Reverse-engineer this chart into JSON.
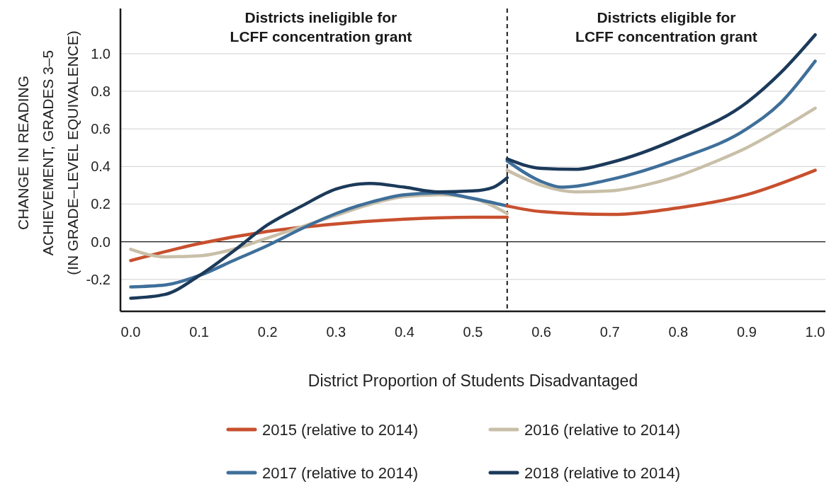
{
  "chart_data": {
    "type": "line",
    "xlabel": "District Proportion of Students Disadvantaged",
    "ylabel": "CHANGE IN READING\nACHIEVEMENT, GRADES 3–5\n(IN GRADE–LEVEL EQUIVALENCE)",
    "annotations": [
      "Districts ineligible for\nLCFF concentration grant",
      "Districts eligible for\nLCFF concentration grant"
    ],
    "xlim": [
      -0.015,
      1.015
    ],
    "ylim": [
      -0.37,
      1.24
    ],
    "xticks": [
      {
        "value": 0,
        "label": "0.0"
      },
      0.1,
      0.2,
      0.3,
      0.4,
      0.5,
      0.6,
      0.7,
      0.8,
      0.9,
      {
        "value": 1,
        "label": "1.0"
      }
    ],
    "yticks": [
      -0.2,
      {
        "value": 0,
        "label": "0.0"
      },
      0.2,
      0.4,
      0.6,
      0.8,
      {
        "value": 1,
        "label": "1.0"
      }
    ],
    "grid": "y",
    "legend": "bottom",
    "line_style": "solid",
    "ref_lines": [
      {
        "axis": "x",
        "value": 0.55,
        "line_style": "dashed",
        "color": "#1a1a1a"
      },
      {
        "axis": "y",
        "value": 0,
        "line_style": "solid",
        "color": "#1a1a1a"
      }
    ],
    "series": [
      {
        "name": "2015 (relative to 2014)",
        "color": "#c8502e",
        "x": [
          0,
          0.1,
          0.2,
          0.3,
          0.4,
          0.5,
          0.55
        ],
        "values": [
          -0.1,
          -0.01,
          0.055,
          0.095,
          0.12,
          0.13,
          0.13
        ]
      },
      {
        "name": "2016 (relative to 2014)",
        "color": "#c9bfa8",
        "x": [
          0,
          0.05,
          0.1,
          0.15,
          0.2,
          0.25,
          0.3,
          0.35,
          0.4,
          0.45,
          0.5,
          0.55
        ],
        "values": [
          -0.04,
          -0.08,
          -0.075,
          -0.04,
          0.02,
          0.08,
          0.14,
          0.2,
          0.24,
          0.25,
          0.23,
          0.15
        ]
      },
      {
        "name": "2017 (relative to 2014)",
        "color": "#3f6f9a",
        "x": [
          0,
          0.05,
          0.1,
          0.15,
          0.2,
          0.25,
          0.3,
          0.35,
          0.4,
          0.45,
          0.5,
          0.55
        ],
        "values": [
          -0.24,
          -0.23,
          -0.18,
          -0.1,
          -0.02,
          0.07,
          0.15,
          0.21,
          0.25,
          0.26,
          0.23,
          0.19
        ]
      },
      {
        "name": "2018 (relative to 2014)",
        "color": "#1c3a5a",
        "x": [
          0,
          0.05,
          0.1,
          0.15,
          0.2,
          0.25,
          0.3,
          0.35,
          0.4,
          0.45,
          0.5,
          0.53,
          0.55
        ],
        "values": [
          -0.3,
          -0.28,
          -0.18,
          -0.05,
          0.09,
          0.19,
          0.28,
          0.31,
          0.29,
          0.265,
          0.27,
          0.29,
          0.34
        ]
      },
      {
        "color": "#c8502e",
        "x": [
          0.55,
          0.6,
          0.7,
          0.8,
          0.9,
          1.0
        ],
        "values": [
          0.19,
          0.16,
          0.145,
          0.18,
          0.25,
          0.38
        ]
      },
      {
        "color": "#c9bfa8",
        "x": [
          0.55,
          0.6,
          0.65,
          0.7,
          0.75,
          0.8,
          0.85,
          0.9,
          0.95,
          1.0
        ],
        "values": [
          0.38,
          0.3,
          0.265,
          0.27,
          0.3,
          0.35,
          0.42,
          0.5,
          0.6,
          0.71
        ]
      },
      {
        "color": "#3f6f9a",
        "x": [
          0.55,
          0.6,
          0.63,
          0.7,
          0.8,
          0.9,
          0.95,
          1.0
        ],
        "values": [
          0.43,
          0.32,
          0.29,
          0.33,
          0.44,
          0.6,
          0.74,
          0.96
        ]
      },
      {
        "color": "#1c3a5a",
        "x": [
          0.55,
          0.6,
          0.65,
          0.7,
          0.8,
          0.9,
          0.95,
          1.0
        ],
        "values": [
          0.44,
          0.39,
          0.385,
          0.42,
          0.55,
          0.74,
          0.9,
          1.1
        ]
      }
    ]
  }
}
